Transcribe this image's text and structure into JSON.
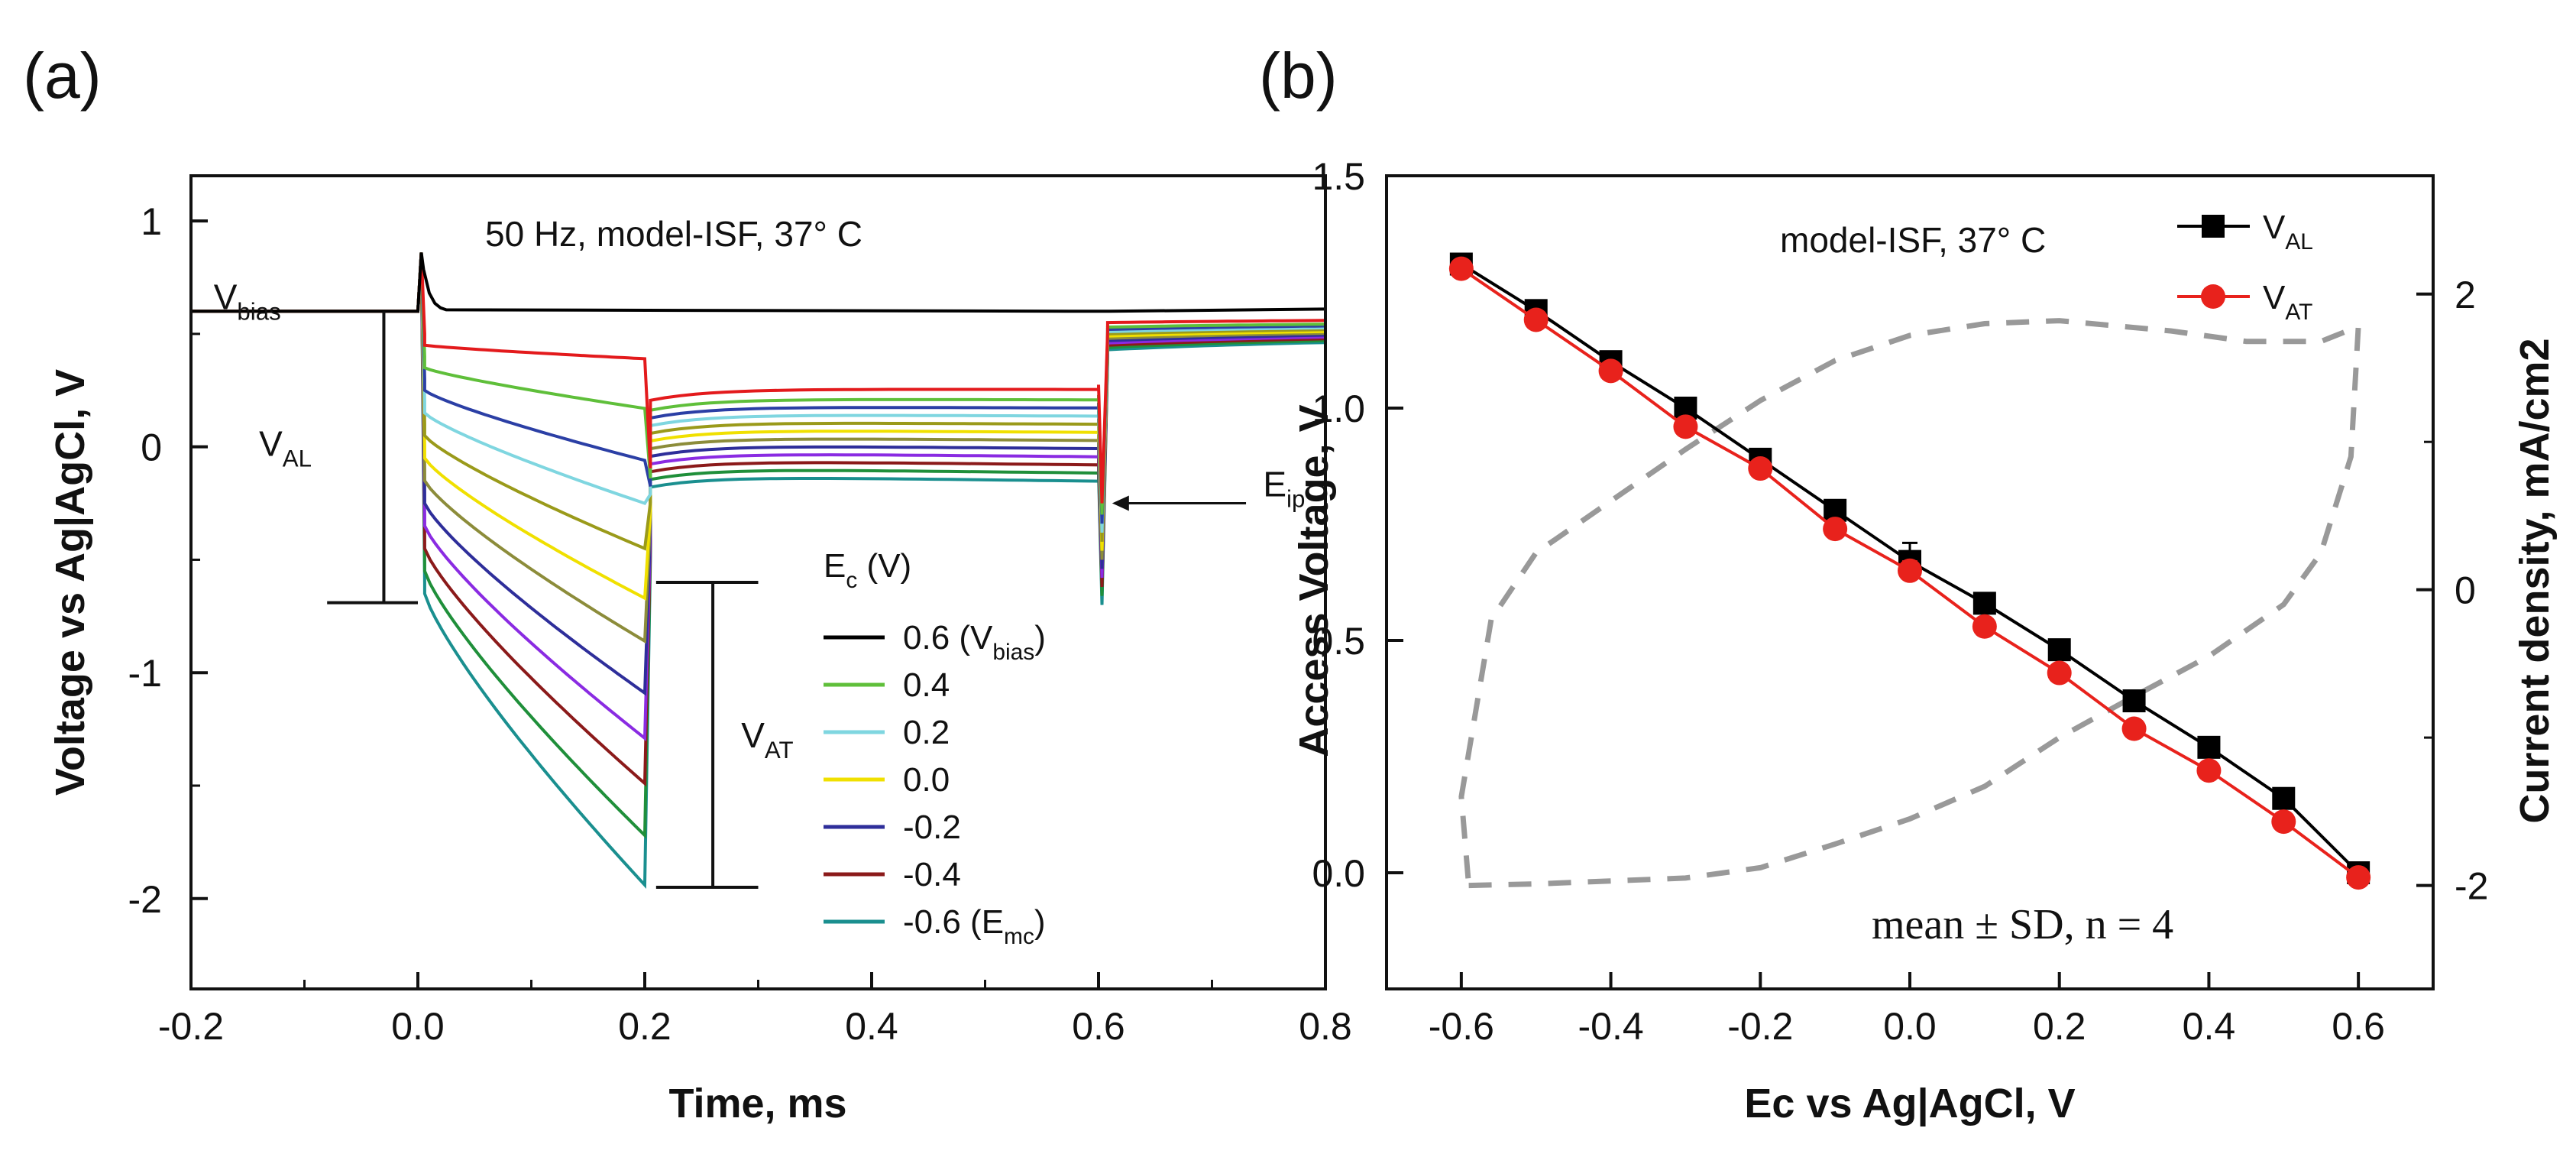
{
  "chart_data": [
    {
      "panel": "(a)",
      "type": "line",
      "title": "50 Hz, model-ISF, 37° C",
      "xlabel": "Time, ms",
      "ylabel": "Voltage vs Ag|AgCl, V",
      "xlim": [
        -0.2,
        0.8
      ],
      "ylim": [
        -2.4,
        1.2
      ],
      "xticks": [
        "-0.2",
        "0.0",
        "0.2",
        "0.4",
        "0.6",
        "0.8"
      ],
      "yticks": [
        "-2",
        "-1",
        "0",
        "1"
      ],
      "legend_title": "Ec (V)",
      "legend_position": "bottom-right",
      "series": [
        {
          "name": "0.6 (Vbias)",
          "legend": true,
          "color": "#000000",
          "Ec": 0.6,
          "V_AL": 0.58,
          "E_ip": 0.6,
          "V_end": 0.58
        },
        {
          "name": "",
          "legend": false,
          "color": "#e31a1c",
          "Ec": 0.5,
          "V_AL": 0.45,
          "E_ip": 0.39,
          "V_end": 0.55
        },
        {
          "name": "0.4",
          "legend": true,
          "color": "#5fbf3a",
          "Ec": 0.4,
          "V_AL": 0.35,
          "E_ip": 0.17,
          "V_end": 0.53
        },
        {
          "name": "",
          "legend": false,
          "color": "#2b3fa5",
          "Ec": 0.3,
          "V_AL": 0.25,
          "E_ip": -0.06,
          "V_end": 0.52
        },
        {
          "name": "0.2",
          "legend": true,
          "color": "#7fd6e0",
          "Ec": 0.2,
          "V_AL": 0.15,
          "E_ip": -0.25,
          "V_end": 0.51
        },
        {
          "name": "",
          "legend": false,
          "color": "#9a9a1a",
          "Ec": 0.1,
          "V_AL": 0.05,
          "E_ip": -0.45,
          "V_end": 0.5
        },
        {
          "name": "0.0",
          "legend": true,
          "color": "#f0e000",
          "Ec": 0.0,
          "V_AL": -0.05,
          "E_ip": -0.67,
          "V_end": 0.49
        },
        {
          "name": "",
          "legend": false,
          "color": "#8c8c3a",
          "Ec": -0.1,
          "V_AL": -0.15,
          "E_ip": -0.86,
          "V_end": 0.48
        },
        {
          "name": "-0.2",
          "legend": true,
          "color": "#2e2e9a",
          "Ec": -0.2,
          "V_AL": -0.25,
          "E_ip": -1.09,
          "V_end": 0.47
        },
        {
          "name": "",
          "legend": false,
          "color": "#8a2be2",
          "Ec": -0.3,
          "V_AL": -0.35,
          "E_ip": -1.29,
          "V_end": 0.46
        },
        {
          "name": "-0.4",
          "legend": true,
          "color": "#8b1a1a",
          "Ec": -0.4,
          "V_AL": -0.45,
          "E_ip": -1.49,
          "V_end": 0.45
        },
        {
          "name": "",
          "legend": false,
          "color": "#1f8f3a",
          "Ec": -0.5,
          "V_AL": -0.55,
          "E_ip": -1.72,
          "V_end": 0.44
        },
        {
          "name": "-0.6 (Emc)",
          "legend": true,
          "color": "#1a8f8f",
          "Ec": -0.6,
          "V_AL": -0.65,
          "E_ip": -1.94,
          "V_end": 0.43
        }
      ],
      "annotations": {
        "v_bias": "Vbias",
        "v_al": "VAL",
        "v_at": "VAT",
        "e_ip": "Eip",
        "v_al_bracket": [
          0.6,
          -0.69
        ],
        "v_at_bracket": [
          -0.6,
          -1.95
        ]
      }
    },
    {
      "panel": "(b)",
      "type": "line",
      "title": "model-ISF, 37° C",
      "xlabel": "Ec vs Ag|AgCl, V",
      "ylabel": "Access Voltage, V",
      "y2label": "Current density, mA/cm2",
      "xlim": [
        -0.7,
        0.7
      ],
      "ylim": [
        -0.25,
        1.5
      ],
      "y2lim": [
        -2.7,
        2.8
      ],
      "xticks": [
        "-0.6",
        "-0.4",
        "-0.2",
        "0.0",
        "0.2",
        "0.4",
        "0.6"
      ],
      "yticks": [
        "0.0",
        "0.5",
        "1.0",
        "1.5"
      ],
      "y2ticks": [
        "-2",
        "0",
        "2"
      ],
      "legend_position": "top-right",
      "note": "mean ± SD, n = 4",
      "x": [
        -0.6,
        -0.5,
        -0.4,
        -0.3,
        -0.2,
        -0.1,
        0.0,
        0.1,
        0.2,
        0.3,
        0.4,
        0.5,
        0.6
      ],
      "series": [
        {
          "name": "VAL",
          "color": "#000000",
          "marker": "square",
          "values": [
            1.31,
            1.21,
            1.1,
            1.0,
            0.89,
            0.78,
            0.67,
            0.58,
            0.48,
            0.37,
            0.27,
            0.16,
            0.0
          ],
          "sd": [
            0.01,
            0.01,
            0.01,
            0.01,
            0.01,
            0.01,
            0.04,
            0.01,
            0.01,
            0.01,
            0.01,
            0.01,
            0.01
          ]
        },
        {
          "name": "VAT",
          "color": "#e8221c",
          "marker": "circle",
          "values": [
            1.3,
            1.19,
            1.08,
            0.96,
            0.87,
            0.74,
            0.65,
            0.53,
            0.43,
            0.31,
            0.22,
            0.11,
            -0.01
          ],
          "sd": [
            0.01,
            0.01,
            0.01,
            0.01,
            0.01,
            0.01,
            0.02,
            0.01,
            0.01,
            0.01,
            0.01,
            0.01,
            0.01
          ]
        }
      ],
      "cv_curve": {
        "color": "#999999",
        "style": "dashed",
        "axis": "right",
        "points": [
          [
            -0.59,
            -2.0
          ],
          [
            -0.5,
            -1.99
          ],
          [
            -0.3,
            -1.95
          ],
          [
            -0.2,
            -1.88
          ],
          [
            -0.1,
            -1.72
          ],
          [
            0.0,
            -1.55
          ],
          [
            0.1,
            -1.33
          ],
          [
            0.2,
            -1.0
          ],
          [
            0.3,
            -0.72
          ],
          [
            0.4,
            -0.45
          ],
          [
            0.5,
            -0.1
          ],
          [
            0.55,
            0.25
          ],
          [
            0.59,
            0.9
          ],
          [
            0.6,
            1.78
          ],
          [
            0.55,
            1.68
          ],
          [
            0.45,
            1.68
          ],
          [
            0.35,
            1.75
          ],
          [
            0.2,
            1.82
          ],
          [
            0.1,
            1.8
          ],
          [
            0.0,
            1.72
          ],
          [
            -0.1,
            1.55
          ],
          [
            -0.2,
            1.28
          ],
          [
            -0.3,
            0.95
          ],
          [
            -0.4,
            0.6
          ],
          [
            -0.5,
            0.25
          ],
          [
            -0.56,
            -0.2
          ],
          [
            -0.6,
            -1.4
          ],
          [
            -0.59,
            -2.0
          ]
        ]
      }
    }
  ]
}
